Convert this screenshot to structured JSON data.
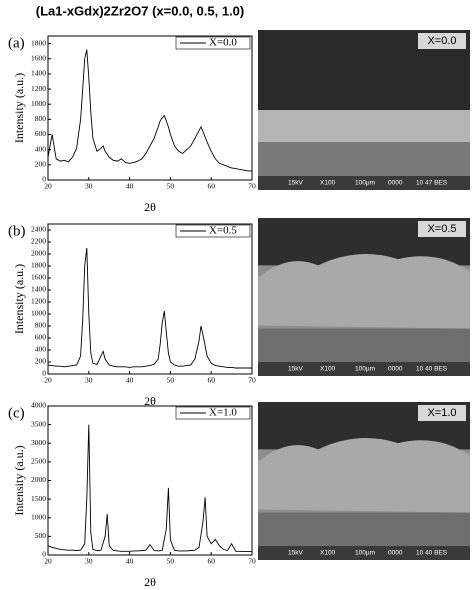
{
  "title": "(La1-xGdx)2Zr2O7 (x=0.0, 0.5, 1.0)",
  "chart_data": [
    {
      "type": "line",
      "panel_label": "(a)",
      "xlabel": "2θ",
      "ylabel": "Intensity (a.u.)",
      "xlim": [
        20,
        70
      ],
      "xticks": [
        20,
        30,
        40,
        50,
        60,
        70
      ],
      "ylim": [
        0,
        1900
      ],
      "yticks": [
        0,
        200,
        400,
        600,
        800,
        1000,
        1200,
        1400,
        1600,
        1800
      ],
      "legend": "upper right",
      "x": [
        20,
        21,
        22,
        23,
        24,
        25,
        26,
        27,
        28,
        28.5,
        29,
        29.5,
        30,
        30.5,
        31,
        32,
        33,
        33.5,
        34,
        35,
        36,
        37,
        38,
        39,
        40,
        41,
        42,
        43,
        44,
        45,
        46,
        47,
        47.5,
        48,
        48.5,
        49,
        49.5,
        50,
        51,
        52,
        53,
        54,
        55,
        56,
        57,
        57.5,
        58,
        59,
        60,
        61,
        62,
        63,
        64,
        65,
        66,
        67,
        68,
        69,
        70
      ],
      "series": [
        {
          "name": "X=0.0",
          "color": "#000000",
          "values": [
            300,
            600,
            280,
            250,
            260,
            240,
            300,
            420,
            800,
            1200,
            1600,
            1720,
            1350,
            900,
            550,
            380,
            420,
            450,
            380,
            300,
            260,
            250,
            280,
            230,
            220,
            230,
            250,
            280,
            350,
            450,
            550,
            700,
            780,
            820,
            850,
            780,
            700,
            600,
            450,
            380,
            350,
            400,
            450,
            550,
            650,
            700,
            640,
            500,
            380,
            280,
            220,
            200,
            180,
            160,
            150,
            140,
            130,
            120,
            120
          ]
        }
      ]
    },
    {
      "type": "line",
      "panel_label": "(b)",
      "xlabel": "2θ",
      "ylabel": "Intensity (a.u.)",
      "xlim": [
        20,
        70
      ],
      "xticks": [
        20,
        30,
        40,
        50,
        60,
        70
      ],
      "ylim": [
        0,
        2500
      ],
      "yticks": [
        0,
        200,
        400,
        600,
        800,
        1000,
        1200,
        1400,
        1600,
        1800,
        2000,
        2200,
        2400
      ],
      "legend": "upper right",
      "x": [
        20,
        21,
        22,
        23,
        24,
        25,
        26,
        27,
        28,
        28.5,
        29,
        29.5,
        30,
        30.5,
        31,
        32,
        33,
        33.5,
        34,
        35,
        36,
        37,
        38,
        39,
        40,
        41,
        42,
        43,
        44,
        45,
        46,
        47,
        47.5,
        48,
        48.5,
        49,
        49.5,
        50,
        51,
        52,
        53,
        54,
        55,
        56,
        57,
        57.5,
        58,
        59,
        60,
        61,
        62,
        63,
        64,
        65,
        66,
        67,
        68,
        69,
        70
      ],
      "series": [
        {
          "name": "X=0.5",
          "color": "#000000",
          "values": [
            150,
            140,
            130,
            130,
            120,
            130,
            140,
            150,
            300,
            900,
            1800,
            2100,
            1000,
            350,
            180,
            160,
            300,
            380,
            250,
            150,
            130,
            120,
            120,
            120,
            110,
            120,
            120,
            120,
            130,
            140,
            160,
            250,
            500,
            850,
            1050,
            700,
            350,
            200,
            150,
            130,
            130,
            140,
            150,
            250,
            550,
            800,
            650,
            300,
            180,
            140,
            130,
            120,
            110,
            110,
            100,
            100,
            100,
            100,
            100
          ]
        }
      ]
    },
    {
      "type": "line",
      "panel_label": "(c)",
      "xlabel": "2θ",
      "ylabel": "Intensity (a.u.)",
      "xlim": [
        20,
        70
      ],
      "xticks": [
        20,
        30,
        40,
        50,
        60,
        70
      ],
      "ylim": [
        0,
        4000
      ],
      "yticks": [
        0,
        500,
        1000,
        1500,
        2000,
        2500,
        3000,
        3500,
        4000
      ],
      "legend": "upper right",
      "x": [
        20,
        21,
        22,
        23,
        24,
        25,
        26,
        27,
        28,
        29,
        29.5,
        30,
        30.5,
        31,
        32,
        33,
        34,
        34.5,
        35,
        36,
        37,
        38,
        39,
        40,
        41,
        42,
        43,
        44,
        45,
        46,
        47,
        48,
        49,
        49.5,
        50,
        51,
        52,
        53,
        54,
        55,
        56,
        57,
        58,
        58.5,
        59,
        60,
        61,
        62,
        63,
        64,
        65,
        66,
        67,
        68,
        69,
        70
      ],
      "series": [
        {
          "name": "X=1.0",
          "color": "#000000",
          "values": [
            250,
            200,
            180,
            150,
            140,
            130,
            130,
            120,
            130,
            300,
            1500,
            3500,
            600,
            150,
            120,
            130,
            500,
            1100,
            250,
            120,
            110,
            100,
            100,
            100,
            110,
            110,
            120,
            130,
            280,
            120,
            110,
            120,
            700,
            1800,
            400,
            130,
            110,
            110,
            110,
            120,
            130,
            200,
            900,
            1550,
            500,
            300,
            420,
            250,
            150,
            120,
            300,
            100,
            100,
            90,
            90,
            90
          ]
        }
      ]
    }
  ],
  "sem_images": [
    {
      "label": "X=0.0",
      "info": [
        "15kV",
        "X100",
        "100μm",
        "0000",
        "10 47 BES"
      ]
    },
    {
      "label": "X=0.5",
      "info": [
        "15kV",
        "X100",
        "100μm",
        "0000",
        "10 40 BES"
      ]
    },
    {
      "label": "X=1.0",
      "info": [
        "15kV",
        "X100",
        "100μm",
        "0000",
        "10 40 BES"
      ]
    }
  ]
}
